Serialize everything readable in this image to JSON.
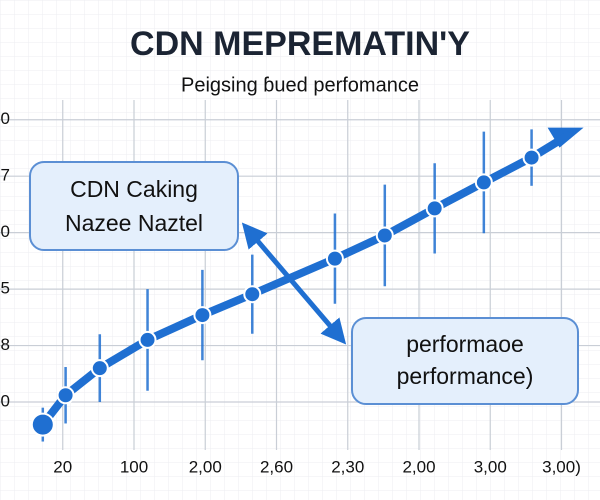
{
  "chart_data": {
    "type": "line",
    "title": "CDN MEPREMATIN'Y",
    "subtitle": "Peigsing ɓued perfomance",
    "annotations": [
      {
        "lines": [
          "CDN Caking",
          "Nazee Naztel"
        ]
      },
      {
        "lines": [
          "performaoe",
          "performance)"
        ]
      }
    ],
    "xlim": [
      -0.6,
      7.4
    ],
    "xticks": [
      {
        "value": 0,
        "label": "20"
      },
      {
        "value": 1,
        "label": "100"
      },
      {
        "value": 2,
        "label": "2,00"
      },
      {
        "value": 3,
        "label": "2,60"
      },
      {
        "value": 4,
        "label": "2,30"
      },
      {
        "value": 5,
        "label": "2,00"
      },
      {
        "value": 6,
        "label": "3,00"
      },
      {
        "value": 7,
        "label": "3,00)"
      }
    ],
    "ylim": [
      -0.85,
      5.35
    ],
    "yticks": [
      0,
      {
        "value": 1,
        "label": "8"
      },
      {
        "value": 2,
        "label": "5"
      },
      {
        "value": 3,
        "label": "0"
      },
      {
        "value": 4,
        "label": "7"
      },
      {
        "value": 5,
        "label": "0"
      }
    ],
    "grid": true,
    "series": [
      {
        "color": "#1f6fd1",
        "x": [
          -0.28,
          0.04,
          0.52,
          1.19,
          1.96,
          2.66,
          3.82,
          4.52,
          5.22,
          5.91,
          6.58
        ],
        "values": [
          -0.4,
          0.12,
          0.6,
          1.1,
          1.54,
          1.91,
          2.54,
          2.95,
          3.43,
          3.89,
          4.33
        ],
        "errors": [
          0.3,
          0.5,
          0.6,
          0.9,
          0.8,
          0.7,
          0.8,
          0.9,
          0.8,
          0.9,
          0.5
        ]
      }
    ]
  }
}
